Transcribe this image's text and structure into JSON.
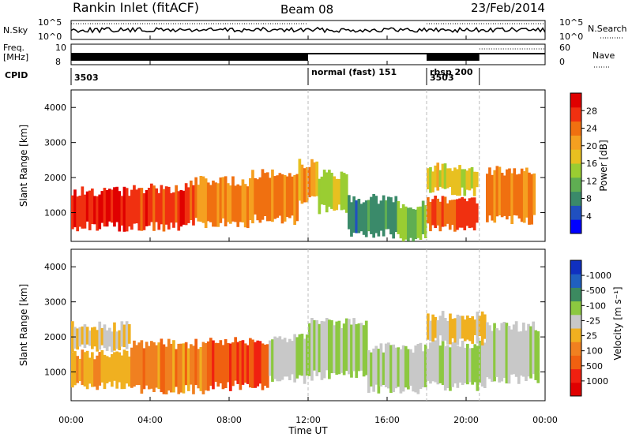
{
  "header": {
    "station": "Rankin Inlet (fitACF)",
    "beam": "Beam 08",
    "date": "23/Feb/2014"
  },
  "noise_panel": {
    "left_label": "N.Sky",
    "left_ticks": [
      "10^5",
      "10^0"
    ],
    "right_ticks": [
      "10^5",
      "10^0"
    ],
    "right_label": "N.Search"
  },
  "freq_panel": {
    "left_label_line1": "Freq.",
    "left_label_line2": "[MHz]",
    "left_ticks": [
      "10",
      "8"
    ],
    "right_ticks": [
      "60",
      "0"
    ],
    "right_label": "Nave"
  },
  "cpid_panel": {
    "label": "CPID",
    "segments": [
      {
        "start_h": 0.0,
        "text": "3503"
      },
      {
        "start_h": 12.0,
        "text": "normal (fast) 151"
      },
      {
        "start_h": 18.0,
        "text": "3503"
      },
      {
        "start_h": 18.0,
        "text": "rbsp 200"
      }
    ],
    "boundaries_h": [
      12.0,
      18.0,
      20.67
    ]
  },
  "colors": {
    "power": [
      "#0000ff",
      "#2050c0",
      "#3a8a6a",
      "#5fae52",
      "#9acd32",
      "#e8c020",
      "#f5a020",
      "#f07010",
      "#f03010",
      "#e00000"
    ],
    "velocity": [
      "#1030c0",
      "#2060c0",
      "#3c8a60",
      "#8cc840",
      "#c8c8c8",
      "#f0b020",
      "#f08020",
      "#f06010",
      "#f02010",
      "#e00000"
    ]
  },
  "chart_data": [
    {
      "type": "heatmap",
      "title": "",
      "xlabel": "",
      "ylabel": "Slant Range [km]",
      "x_range_h": [
        0,
        24
      ],
      "ylim": [
        180,
        4500
      ],
      "yticks": [
        1000,
        2000,
        3000,
        4000
      ],
      "colorbar": {
        "label": "Power [dB]",
        "ticks": [
          "4",
          "8",
          "12",
          "16",
          "20",
          "24",
          "28"
        ],
        "range": [
          0,
          30
        ]
      },
      "bands": [
        {
          "t0": 0,
          "t1": 3,
          "r0": 600,
          "r1": 1600,
          "v": 27
        },
        {
          "t0": 3,
          "t1": 6,
          "r0": 600,
          "r1": 1700,
          "v": 25
        },
        {
          "t0": 6,
          "t1": 9,
          "r0": 700,
          "r1": 1900,
          "v": 22
        },
        {
          "t0": 9,
          "t1": 11.5,
          "r0": 800,
          "r1": 2100,
          "v": 21
        },
        {
          "t0": 11.5,
          "t1": 12.5,
          "r0": 1400,
          "r1": 2400,
          "v": 20
        },
        {
          "t0": 12.5,
          "t1": 14,
          "r0": 1100,
          "r1": 2100,
          "v": 14
        },
        {
          "t0": 14,
          "t1": 16.5,
          "r0": 400,
          "r1": 1400,
          "v": 8
        },
        {
          "t0": 16.5,
          "t1": 18,
          "r0": 300,
          "r1": 1200,
          "v": 12
        },
        {
          "t0": 18,
          "t1": 20.6,
          "r0": 600,
          "r1": 1400,
          "v": 24
        },
        {
          "t0": 18,
          "t1": 20.6,
          "r0": 1600,
          "r1": 2300,
          "v": 16
        },
        {
          "t0": 21,
          "t1": 23.5,
          "r0": 800,
          "r1": 2200,
          "v": 22
        }
      ]
    },
    {
      "type": "heatmap",
      "title": "",
      "xlabel": "Time UT",
      "ylabel": "Slant Range [km]",
      "x_range_h": [
        0,
        24
      ],
      "ylim": [
        180,
        4500
      ],
      "yticks": [
        1000,
        2000,
        3000,
        4000
      ],
      "xticks": [
        "00:00",
        "04:00",
        "08:00",
        "12:00",
        "16:00",
        "20:00",
        "00:00"
      ],
      "colorbar": {
        "label": "Velocity [m s⁻¹]",
        "ticks": [
          "1000",
          "500",
          "100",
          "25",
          "-25",
          "-100",
          "-500",
          "-1000"
        ],
        "range": [
          -1000,
          1000
        ]
      },
      "bands": [
        {
          "t0": 0,
          "t1": 3,
          "r0": 600,
          "r1": 1500,
          "v": 150
        },
        {
          "t0": 0,
          "t1": 3,
          "r0": 1700,
          "r1": 2300,
          "v": 0
        },
        {
          "t0": 3,
          "t1": 7,
          "r0": 500,
          "r1": 1800,
          "v": 300
        },
        {
          "t0": 7,
          "t1": 10,
          "r0": 600,
          "r1": 1900,
          "v": 600
        },
        {
          "t0": 10,
          "t1": 12,
          "r0": 800,
          "r1": 2000,
          "v": -150
        },
        {
          "t0": 12,
          "t1": 15,
          "r0": 900,
          "r1": 2400,
          "v": -200
        },
        {
          "t0": 15,
          "t1": 18,
          "r0": 500,
          "r1": 1700,
          "v": -150
        },
        {
          "t0": 18,
          "t1": 21,
          "r0": 600,
          "r1": 1800,
          "v": -200
        },
        {
          "t0": 18,
          "t1": 21,
          "r0": 1900,
          "r1": 2600,
          "v": 0
        },
        {
          "t0": 21,
          "t1": 23.7,
          "r0": 800,
          "r1": 2300,
          "v": -150
        }
      ]
    }
  ]
}
